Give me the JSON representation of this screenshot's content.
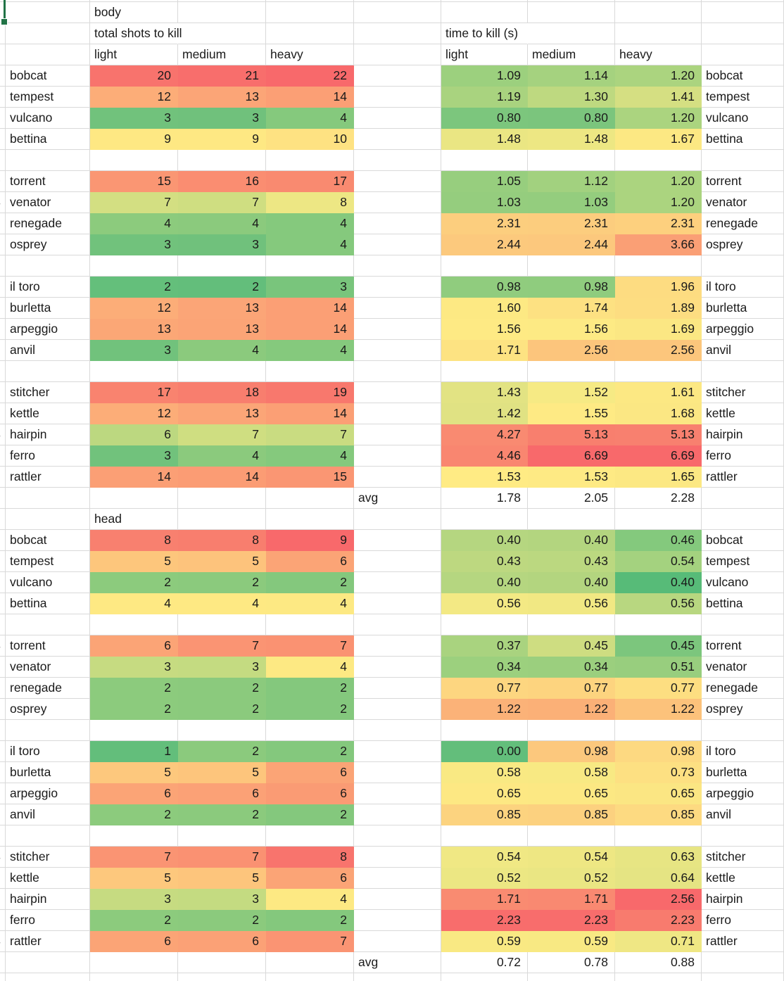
{
  "sheet": {
    "grid_color": "#d9d9d9",
    "selection_color": "#217346",
    "text_color": "#1a1a1a",
    "header": {
      "section_body": "body",
      "section_head": "head",
      "shots_title": "total shots to kill",
      "ttk_title": "time to kill (s)",
      "col_labels": [
        "light",
        "medium",
        "heavy"
      ],
      "avg_label": "avg"
    },
    "columns": {
      "widths": [
        8,
        120,
        125,
        125,
        125,
        124,
        123,
        124,
        123,
        117
      ],
      "names": [
        "clipped-left-column",
        "weapon-name",
        "shots-light",
        "shots-medium",
        "shots-heavy",
        "avg-spacer",
        "ttk-light",
        "ttk-medium",
        "ttk-heavy",
        "weapon-name-right"
      ]
    },
    "rows": [
      {
        "t": "section",
        "label": "body"
      },
      {
        "t": "titles"
      },
      {
        "t": "collabels"
      },
      {
        "t": "w",
        "n": "bobcat",
        "cut": "2",
        "s": [
          "20",
          "21",
          "22"
        ],
        "sc": [
          "#F8736D",
          "#F86E6C",
          "#F8696B"
        ],
        "k": [
          "1.09",
          "1.14",
          "1.20"
        ],
        "kc": [
          "#9CD07E",
          "#A5D27F",
          "#ABD47F"
        ]
      },
      {
        "t": "w",
        "n": "tempest",
        "cut": "5",
        "s": [
          "12",
          "13",
          "14"
        ],
        "sc": [
          "#FCAD78",
          "#FBA577",
          "#FB9F75"
        ],
        "k": [
          "1.19",
          "1.30",
          "1.41"
        ],
        "kc": [
          "#A9D37F",
          "#BED980",
          "#D5DF82"
        ]
      },
      {
        "t": "w",
        "n": "vulcano",
        "cut": "2",
        "s": [
          "3",
          "3",
          "4"
        ],
        "sc": [
          "#71C27C",
          "#70C17C",
          "#85C97D"
        ],
        "k": [
          "0.80",
          "0.80",
          "1.20"
        ],
        "kc": [
          "#7CC67D",
          "#7BC57D",
          "#ABD47F"
        ]
      },
      {
        "t": "w",
        "n": "bettina",
        "cut": "5",
        "s": [
          "9",
          "9",
          "10"
        ],
        "sc": [
          "#FEE883",
          "#FEE883",
          "#FEE282"
        ],
        "k": [
          "1.48",
          "1.48",
          "1.67"
        ],
        "kc": [
          "#EAE683",
          "#EDE783",
          "#FCE883"
        ]
      },
      {
        "t": "blank"
      },
      {
        "t": "w",
        "n": "torrent",
        "cut": "0",
        "s": [
          "15",
          "16",
          "17"
        ],
        "sc": [
          "#FA9673",
          "#FA8D71",
          "#F98A70"
        ],
        "k": [
          "1.05",
          "1.12",
          "1.20"
        ],
        "kc": [
          "#97CE7E",
          "#A2D17F",
          "#ABD47F"
        ]
      },
      {
        "t": "w",
        "n": "venator",
        "cut": "4",
        "s": [
          "7",
          "7",
          "8"
        ],
        "sc": [
          "#D3DF82",
          "#CFDE81",
          "#EDE784"
        ],
        "k": [
          "1.03",
          "1.03",
          "1.20"
        ],
        "kc": [
          "#95CD7E",
          "#94CD7E",
          "#ABD47F"
        ]
      },
      {
        "t": "w",
        "n": "renegade",
        "cut": "2",
        "s": [
          "4",
          "4",
          "4"
        ],
        "sc": [
          "#8CCB7D",
          "#8BCA7D",
          "#85C97D"
        ],
        "k": [
          "2.31",
          "2.31",
          "2.31"
        ],
        "kc": [
          "#FCCE7E",
          "#FCCD7E",
          "#FDD07E"
        ]
      },
      {
        "t": "w",
        "n": "osprey",
        "cut": "2",
        "s": [
          "3",
          "3",
          "4"
        ],
        "sc": [
          "#71C27C",
          "#70C17C",
          "#85C97D"
        ],
        "k": [
          "2.44",
          "2.44",
          "3.66"
        ],
        "kc": [
          "#FCC97D",
          "#FCC87D",
          "#FA9F75"
        ]
      },
      {
        "t": "blank"
      },
      {
        "t": "w",
        "n": "il toro",
        "cut": "2",
        "s": [
          "2",
          "2",
          "3"
        ],
        "sc": [
          "#64BF7B",
          "#63BE7B",
          "#79C57C"
        ],
        "k": [
          "0.98",
          "0.98",
          "1.96"
        ],
        "kc": [
          "#90CC7E",
          "#8FCC7E",
          "#FDDC81"
        ]
      },
      {
        "t": "w",
        "n": "burletta",
        "cut": "3",
        "s": [
          "12",
          "13",
          "14"
        ],
        "sc": [
          "#FCAD78",
          "#FBA577",
          "#FB9F75"
        ],
        "k": [
          "1.60",
          "1.74",
          "1.89"
        ],
        "kc": [
          "#FDE983",
          "#FDE182",
          "#FDDD81"
        ]
      },
      {
        "t": "w",
        "n": "arpeggio",
        "cut": "3",
        "s": [
          "13",
          "13",
          "14"
        ],
        "sc": [
          "#FBA776",
          "#FBA476",
          "#FB9F75"
        ],
        "k": [
          "1.56",
          "1.56",
          "1.69"
        ],
        "kc": [
          "#FEEA84",
          "#FDEA84",
          "#FBE783"
        ]
      },
      {
        "t": "w",
        "n": "anvil",
        "cut": "2",
        "s": [
          "3",
          "4",
          "4"
        ],
        "sc": [
          "#71C27C",
          "#8BCA7D",
          "#85C97D"
        ],
        "k": [
          "1.71",
          "2.56",
          "2.56"
        ],
        "kc": [
          "#FDE382",
          "#FCC57C",
          "#FCC67C"
        ]
      },
      {
        "t": "blank"
      },
      {
        "t": "w",
        "n": "stitcher",
        "cut": "1",
        "s": [
          "17",
          "18",
          "19"
        ],
        "sc": [
          "#F9836F",
          "#F87E6E",
          "#F8786D"
        ],
        "k": [
          "1.43",
          "1.52",
          "1.61"
        ],
        "kc": [
          "#E2E383",
          "#F6EA84",
          "#FCE883"
        ]
      },
      {
        "t": "w",
        "n": "kettle",
        "cut": "3",
        "s": [
          "12",
          "13",
          "14"
        ],
        "sc": [
          "#FCAD78",
          "#FBA577",
          "#FB9F75"
        ],
        "k": [
          "1.42",
          "1.55",
          "1.68"
        ],
        "kc": [
          "#E0E283",
          "#FEEA84",
          "#FBE783"
        ]
      },
      {
        "t": "w",
        "n": "hairpin",
        "cut": "4",
        "s": [
          "6",
          "7",
          "7"
        ],
        "sc": [
          "#BCD880",
          "#CFDE81",
          "#C9DC81"
        ],
        "k": [
          "4.27",
          "5.13",
          "5.13"
        ],
        "kc": [
          "#F98A71",
          "#F87F6E",
          "#F8806F"
        ]
      },
      {
        "t": "w",
        "n": "ferro",
        "cut": "2",
        "s": [
          "3",
          "4",
          "4"
        ],
        "sc": [
          "#71C27C",
          "#8BCA7D",
          "#85C97D"
        ],
        "k": [
          "4.46",
          "6.69",
          "6.69"
        ],
        "kc": [
          "#F98670",
          "#F8696B",
          "#F8696B"
        ]
      },
      {
        "t": "w",
        "n": "rattler",
        "cut": "3",
        "s": [
          "14",
          "14",
          "15"
        ],
        "sc": [
          "#FB9F75",
          "#FB9C74",
          "#FA9673"
        ],
        "k": [
          "1.53",
          "1.53",
          "1.65"
        ],
        "kc": [
          "#FFEB84",
          "#FEEA84",
          "#FCE883"
        ]
      },
      {
        "t": "avg",
        "k": [
          "1.78",
          "2.05",
          "2.28"
        ]
      },
      {
        "t": "section",
        "label": "head"
      },
      {
        "t": "w",
        "n": "bobcat",
        "cut": "5",
        "s": [
          "8",
          "8",
          "9"
        ],
        "sc": [
          "#F8806F",
          "#F87E6E",
          "#F8696B"
        ],
        "k": [
          "0.40",
          "0.40",
          "0.46"
        ],
        "kc": [
          "#B5D680",
          "#B3D57F",
          "#84C97D"
        ]
      },
      {
        "t": "w",
        "n": "tempest",
        "cut": "3",
        "s": [
          "5",
          "5",
          "6"
        ],
        "sc": [
          "#FDC67C",
          "#FDC37C",
          "#FBA476"
        ],
        "k": [
          "0.43",
          "0.43",
          "0.54"
        ],
        "kc": [
          "#BDD880",
          "#BBD880",
          "#A4D27F"
        ]
      },
      {
        "t": "w",
        "n": "vulcano",
        "cut": "1",
        "s": [
          "2",
          "2",
          "2"
        ],
        "sc": [
          "#8CCB7D",
          "#8BCA7D",
          "#84C87D"
        ],
        "k": [
          "0.40",
          "0.40",
          "0.40"
        ],
        "kc": [
          "#B5D680",
          "#B3D57F",
          "#57BB78"
        ]
      },
      {
        "t": "w",
        "n": "bettina",
        "cut": "2",
        "s": [
          "4",
          "4",
          "4"
        ],
        "sc": [
          "#FEE983",
          "#FEE983",
          "#FDE983"
        ],
        "k": [
          "0.56",
          "0.56",
          "0.56"
        ],
        "kc": [
          "#F3E984",
          "#F1E883",
          "#B8D780"
        ]
      },
      {
        "t": "blank"
      },
      {
        "t": "w",
        "n": "torrent",
        "cut": "4",
        "s": [
          "6",
          "7",
          "7"
        ],
        "sc": [
          "#FBA476",
          "#FA9473",
          "#FA9272"
        ],
        "k": [
          "0.37",
          "0.45",
          "0.45"
        ],
        "kc": [
          "#A9D37F",
          "#CEDD81",
          "#7CC67D"
        ]
      },
      {
        "t": "w",
        "n": "venator",
        "cut": "2",
        "s": [
          "3",
          "3",
          "4"
        ],
        "sc": [
          "#C6DB81",
          "#C4DB81",
          "#FDE983"
        ],
        "k": [
          "0.34",
          "0.34",
          "0.51"
        ],
        "kc": [
          "#9CD07E",
          "#9BCF7E",
          "#98CE7E"
        ]
      },
      {
        "t": "w",
        "n": "renegade",
        "cut": "1",
        "s": [
          "2",
          "2",
          "2"
        ],
        "sc": [
          "#8CCB7D",
          "#8BCA7D",
          "#84C87D"
        ],
        "k": [
          "0.77",
          "0.77",
          "0.77"
        ],
        "kc": [
          "#FDD680",
          "#FDD47F",
          "#FDDE81"
        ]
      },
      {
        "t": "w",
        "n": "osprey",
        "cut": "1",
        "s": [
          "2",
          "2",
          "2"
        ],
        "sc": [
          "#8CCB7D",
          "#8BCA7D",
          "#84C87D"
        ],
        "k": [
          "1.22",
          "1.22",
          "1.22"
        ],
        "kc": [
          "#FBB278",
          "#FBB077",
          "#FCC27B"
        ]
      },
      {
        "t": "blank"
      },
      {
        "t": "w",
        "n": "il toro",
        "cut": "1",
        "s": [
          "1",
          "2",
          "2"
        ],
        "sc": [
          "#63BE7B",
          "#8BCA7D",
          "#84C87D"
        ],
        "k": [
          "0.00",
          "0.98",
          "0.98"
        ],
        "kc": [
          "#63BE7B",
          "#FCC87D",
          "#FDD981"
        ]
      },
      {
        "t": "w",
        "n": "burletta",
        "cut": "3",
        "s": [
          "5",
          "5",
          "6"
        ],
        "sc": [
          "#FDC87D",
          "#FDC57C",
          "#FBA476"
        ],
        "k": [
          "0.58",
          "0.58",
          "0.73"
        ],
        "kc": [
          "#F9E983",
          "#F8E983",
          "#FDE082"
        ]
      },
      {
        "t": "w",
        "n": "arpeggio",
        "cut": "3",
        "s": [
          "6",
          "6",
          "6"
        ],
        "sc": [
          "#FBA476",
          "#FBA176",
          "#FA9B74"
        ],
        "k": [
          "0.65",
          "0.65",
          "0.65"
        ],
        "kc": [
          "#FDE883",
          "#FCE883",
          "#FBE683"
        ]
      },
      {
        "t": "w",
        "n": "anvil",
        "cut": "1",
        "s": [
          "2",
          "2",
          "2"
        ],
        "sc": [
          "#8CCB7D",
          "#8BCA7D",
          "#84C87D"
        ],
        "k": [
          "0.85",
          "0.85",
          "0.85"
        ],
        "kc": [
          "#FCD37F",
          "#FCD17F",
          "#FDDA81"
        ]
      },
      {
        "t": "blank"
      },
      {
        "t": "w",
        "n": "stitcher",
        "cut": "4",
        "s": [
          "7",
          "7",
          "8"
        ],
        "sc": [
          "#FA9473",
          "#FA9172",
          "#F8746D"
        ],
        "k": [
          "0.54",
          "0.54",
          "0.63"
        ],
        "kc": [
          "#F0E884",
          "#EEE783",
          "#E7E583"
        ]
      },
      {
        "t": "w",
        "n": "kettle",
        "cut": "3",
        "s": [
          "5",
          "5",
          "6"
        ],
        "sc": [
          "#FDC87D",
          "#FDC57C",
          "#FBA476"
        ],
        "k": [
          "0.52",
          "0.52",
          "0.64"
        ],
        "kc": [
          "#ECE783",
          "#EAE683",
          "#E5E483"
        ]
      },
      {
        "t": "w",
        "n": "hairpin",
        "cut": "2",
        "s": [
          "3",
          "3",
          "4"
        ],
        "sc": [
          "#C6DB81",
          "#C4DB81",
          "#FDE983"
        ],
        "k": [
          "1.71",
          "1.71",
          "2.56"
        ],
        "kc": [
          "#F98B71",
          "#F98971",
          "#F8696B"
        ]
      },
      {
        "t": "w",
        "n": "ferro",
        "cut": "1",
        "s": [
          "2",
          "2",
          "2"
        ],
        "sc": [
          "#8CCB7D",
          "#8BCA7D",
          "#84C87D"
        ],
        "k": [
          "2.23",
          "2.23",
          "2.23"
        ],
        "kc": [
          "#F86D6C",
          "#F86D6C",
          "#F87B6E"
        ]
      },
      {
        "t": "w",
        "n": "rattler",
        "cut": "4",
        "s": [
          "6",
          "6",
          "7"
        ],
        "sc": [
          "#FBA476",
          "#FBA176",
          "#FA9473"
        ],
        "k": [
          "0.59",
          "0.59",
          "0.71"
        ],
        "kc": [
          "#F9E983",
          "#F8E983",
          "#EFE784"
        ]
      },
      {
        "t": "avg",
        "k": [
          "0.72",
          "0.78",
          "0.88"
        ]
      }
    ]
  }
}
